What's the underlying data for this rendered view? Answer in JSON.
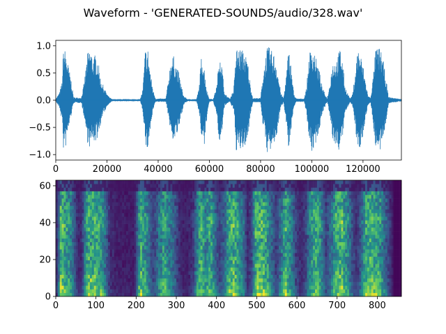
{
  "figure": {
    "title": "Waveform - 'GENERATED-SOUNDS/audio/328.wav'"
  },
  "chart_data": [
    {
      "type": "line",
      "panel": "waveform",
      "title": "",
      "xlabel": "",
      "ylabel": "",
      "xlim": [
        0,
        135000
      ],
      "ylim": [
        -1.1,
        1.1
      ],
      "x_ticks": [
        0,
        20000,
        40000,
        60000,
        80000,
        100000,
        120000
      ],
      "x_tick_labels": [
        "0",
        "20000",
        "40000",
        "60000",
        "80000",
        "100000",
        "120000"
      ],
      "y_ticks": [
        1.0,
        0.5,
        0.0,
        -0.5,
        -1.0
      ],
      "y_tick_labels": [
        "1.0",
        "0.5",
        "0.0",
        "−0.5",
        "−1.0"
      ],
      "line_color": "#1f77b4",
      "x": [
        0,
        1500,
        2500,
        3000,
        3500,
        4000,
        5000,
        6000,
        7000,
        10000,
        11000,
        12500,
        13500,
        14500,
        15500,
        16500,
        17500,
        19000,
        20500,
        22000,
        33000,
        34000,
        35000,
        35500,
        36000,
        37000,
        38000,
        39000,
        43000,
        44000,
        45000,
        46000,
        47000,
        48000,
        49000,
        50000,
        51500,
        55000,
        56000,
        57000,
        58000,
        59000,
        60000,
        61500,
        63000,
        64000,
        65000,
        66000,
        68000,
        69500,
        70500,
        72000,
        73500,
        75000,
        76000,
        77000,
        80000,
        81000,
        82500,
        83500,
        84500,
        85000,
        86000,
        88000,
        89000,
        90000,
        91000,
        92000,
        93000,
        94000,
        97000,
        98000,
        99000,
        100000,
        101000,
        102000,
        103000,
        104000,
        106000,
        107000,
        108000,
        109000,
        110000,
        111000,
        112000,
        113000,
        115000,
        116000,
        117000,
        118000,
        119000,
        120000,
        121000,
        122000,
        123000,
        124000,
        125000,
        126000,
        127000,
        128000,
        129000,
        130000,
        135000
      ],
      "y_upper": [
        0.02,
        0.15,
        0.35,
        0.97,
        0.95,
        0.88,
        0.62,
        0.38,
        0.05,
        0.05,
        0.3,
        0.88,
        0.97,
        0.78,
        0.85,
        0.74,
        0.4,
        0.22,
        0.08,
        0.02,
        0.02,
        0.2,
        0.97,
        0.9,
        0.95,
        0.5,
        0.2,
        0.03,
        0.03,
        0.38,
        0.78,
        0.82,
        0.65,
        0.52,
        0.28,
        0.08,
        0.02,
        0.02,
        0.25,
        0.88,
        0.62,
        0.18,
        0.03,
        0.02,
        0.3,
        0.97,
        0.6,
        0.12,
        0.03,
        0.2,
        0.97,
        0.95,
        0.92,
        0.72,
        0.28,
        0.04,
        0.04,
        0.5,
        0.98,
        0.97,
        0.9,
        0.88,
        0.75,
        0.12,
        0.04,
        0.45,
        0.97,
        0.6,
        0.12,
        0.03,
        0.03,
        0.25,
        0.88,
        0.96,
        0.92,
        0.7,
        0.55,
        0.25,
        0.03,
        0.3,
        0.7,
        0.72,
        0.78,
        0.98,
        0.75,
        0.25,
        0.03,
        0.12,
        0.55,
        0.98,
        0.85,
        0.65,
        0.35,
        0.08,
        0.05,
        0.45,
        0.98,
        0.97,
        0.95,
        0.7,
        0.4,
        0.06,
        0.02
      ],
      "y_lower": [
        -0.02,
        -0.15,
        -0.4,
        -0.92,
        -0.9,
        -0.85,
        -0.55,
        -0.3,
        -0.05,
        -0.05,
        -0.3,
        -0.8,
        -0.9,
        -0.75,
        -0.78,
        -0.68,
        -0.45,
        -0.22,
        -0.08,
        -0.02,
        -0.02,
        -0.2,
        -0.82,
        -0.96,
        -0.9,
        -0.55,
        -0.2,
        -0.03,
        -0.03,
        -0.3,
        -0.65,
        -0.75,
        -0.68,
        -0.58,
        -0.3,
        -0.08,
        -0.02,
        -0.02,
        -0.25,
        -0.7,
        -0.9,
        -0.35,
        -0.03,
        -0.02,
        -0.3,
        -0.95,
        -0.55,
        -0.1,
        -0.03,
        -0.2,
        -0.93,
        -0.96,
        -0.9,
        -0.72,
        -0.28,
        -0.04,
        -0.04,
        -0.5,
        -0.96,
        -0.97,
        -0.92,
        -0.88,
        -0.75,
        -0.12,
        -0.04,
        -0.4,
        -0.97,
        -0.6,
        -0.12,
        -0.03,
        -0.03,
        -0.25,
        -0.8,
        -0.97,
        -0.9,
        -0.7,
        -0.55,
        -0.25,
        -0.03,
        -0.3,
        -0.7,
        -0.85,
        -0.88,
        -0.96,
        -0.7,
        -0.25,
        -0.03,
        -0.12,
        -0.55,
        -0.98,
        -0.85,
        -0.65,
        -0.35,
        -0.08,
        -0.05,
        -0.45,
        -0.9,
        -0.97,
        -0.95,
        -0.7,
        -0.4,
        -0.06,
        -0.02
      ]
    },
    {
      "type": "heatmap",
      "panel": "spectrogram",
      "title": "",
      "xlabel": "",
      "ylabel": "",
      "colormap": "viridis",
      "xlim": [
        0,
        860
      ],
      "ylim": [
        0,
        63
      ],
      "x_ticks": [
        0,
        100,
        200,
        300,
        400,
        500,
        600,
        700,
        800
      ],
      "x_tick_labels": [
        "0",
        "100",
        "200",
        "300",
        "400",
        "500",
        "600",
        "700",
        "800"
      ],
      "y_ticks": [
        60,
        40,
        20,
        0
      ],
      "y_tick_labels": [
        "60",
        "40",
        "20",
        "0"
      ],
      "frames": 860,
      "bins": 64,
      "frame_energy": [
        [
          0,
          0.05
        ],
        [
          8,
          0.45
        ],
        [
          12,
          0.95
        ],
        [
          22,
          0.85
        ],
        [
          35,
          0.7
        ],
        [
          45,
          0.4
        ],
        [
          55,
          0.12
        ],
        [
          65,
          0.15
        ],
        [
          72,
          0.55
        ],
        [
          82,
          0.95
        ],
        [
          100,
          0.85
        ],
        [
          115,
          0.75
        ],
        [
          125,
          0.45
        ],
        [
          135,
          0.15
        ],
        [
          150,
          0.08
        ],
        [
          195,
          0.06
        ],
        [
          202,
          0.35
        ],
        [
          210,
          0.9
        ],
        [
          225,
          0.7
        ],
        [
          235,
          0.35
        ],
        [
          245,
          0.25
        ],
        [
          258,
          0.55
        ],
        [
          268,
          0.8
        ],
        [
          280,
          0.65
        ],
        [
          292,
          0.45
        ],
        [
          305,
          0.2
        ],
        [
          318,
          0.08
        ],
        [
          330,
          0.1
        ],
        [
          342,
          0.2
        ],
        [
          352,
          0.6
        ],
        [
          360,
          0.92
        ],
        [
          372,
          0.65
        ],
        [
          385,
          0.85
        ],
        [
          395,
          0.55
        ],
        [
          405,
          0.25
        ],
        [
          420,
          0.4
        ],
        [
          432,
          0.88
        ],
        [
          445,
          0.95
        ],
        [
          455,
          0.75
        ],
        [
          468,
          0.45
        ],
        [
          478,
          0.12
        ],
        [
          488,
          0.3
        ],
        [
          498,
          0.9
        ],
        [
          512,
          0.95
        ],
        [
          525,
          0.8
        ],
        [
          538,
          0.45
        ],
        [
          550,
          0.2
        ],
        [
          560,
          0.5
        ],
        [
          572,
          0.92
        ],
        [
          585,
          0.6
        ],
        [
          598,
          0.25
        ],
        [
          610,
          0.12
        ],
        [
          622,
          0.25
        ],
        [
          635,
          0.7
        ],
        [
          648,
          0.9
        ],
        [
          660,
          0.65
        ],
        [
          672,
          0.25
        ],
        [
          685,
          0.45
        ],
        [
          700,
          0.9
        ],
        [
          712,
          0.95
        ],
        [
          725,
          0.7
        ],
        [
          738,
          0.3
        ],
        [
          750,
          0.15
        ],
        [
          762,
          0.5
        ],
        [
          775,
          0.95
        ],
        [
          790,
          0.9
        ],
        [
          805,
          0.8
        ],
        [
          818,
          0.5
        ],
        [
          830,
          0.2
        ],
        [
          838,
          0.08
        ],
        [
          845,
          0.02
        ],
        [
          860,
          0.02
        ]
      ]
    }
  ]
}
